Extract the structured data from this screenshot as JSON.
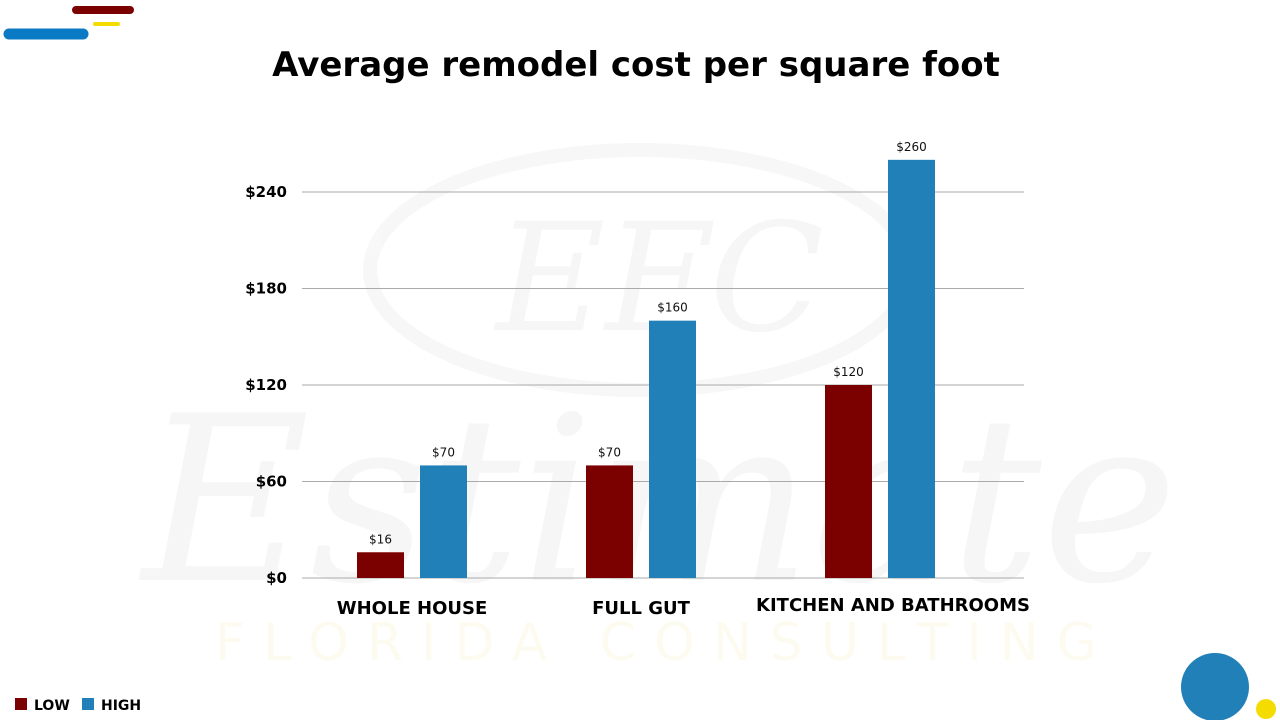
{
  "watermark": {
    "monogram": "EFC",
    "script": "Estimate",
    "subtitle": "FLORIDA CONSULTING"
  },
  "colors": {
    "low": "#7b0000",
    "high": "#2280b9",
    "accent_yellow": "#f5dc00",
    "deco_blue": "#0a7ac4",
    "grid": "#aaaaaa"
  },
  "chart_data": {
    "type": "bar",
    "title": "Average remodel cost per square foot",
    "categories": [
      "WHOLE HOUSE",
      "FULL GUT",
      "KITCHEN AND BATHROOMS"
    ],
    "series": [
      {
        "name": "LOW",
        "values": [
          16,
          70,
          120
        ],
        "labels": [
          "$16",
          "$70",
          "$120"
        ]
      },
      {
        "name": "HIGH",
        "values": [
          70,
          160,
          260
        ],
        "labels": [
          "$70",
          "$160",
          "$260"
        ]
      }
    ],
    "yticks": [
      0,
      60,
      120,
      180,
      240
    ],
    "ytick_labels": [
      "$0",
      "$60",
      "$120",
      "$180",
      "$240"
    ],
    "ylim": [
      0,
      260
    ],
    "grid": true,
    "legend": "bottom-left",
    "xlabel": "",
    "ylabel": ""
  }
}
